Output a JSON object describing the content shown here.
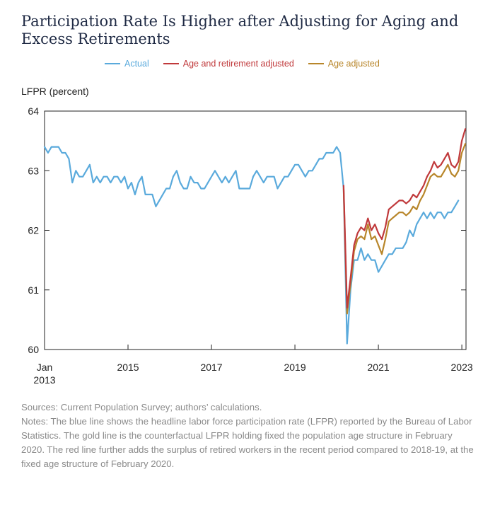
{
  "title": "Participation Rate Is Higher after Adjusting for Aging and Excess Retirements",
  "sources": "Sources: Current Population Survey; authors’ calculations.",
  "notes": "Notes: The blue line shows the headline labor force participation rate (LFPR) reported by the Bureau of Labor Statistics. The gold line is the counterfactual LFPR holding fixed the population age structure in February 2020. The red line further adds the surplus of retired workers in the recent period compared to 2018-19, at the fixed age structure of February 2020.",
  "colors": {
    "actual": "#5aaadc",
    "age_retirement": "#c0393b",
    "age": "#b8862a"
  },
  "chart_data": {
    "type": "line",
    "title": "Participation Rate Is Higher after Adjusting for Aging and Excess Retirements",
    "ylabel": "LFPR (percent)",
    "xlabel": "",
    "ylim": [
      60,
      64
    ],
    "xlim": [
      2013.0,
      2023.1
    ],
    "yticks": [
      60,
      61,
      62,
      63,
      64
    ],
    "xticks": [
      {
        "x": 2013.0,
        "line1": "Jan",
        "line2": "2013"
      },
      {
        "x": 2015.0,
        "line1": "2015",
        "line2": ""
      },
      {
        "x": 2017.0,
        "line1": "2017",
        "line2": ""
      },
      {
        "x": 2019.0,
        "line1": "2019",
        "line2": ""
      },
      {
        "x": 2021.0,
        "line1": "2021",
        "line2": ""
      },
      {
        "x": 2023.0,
        "line1": "2023",
        "line2": ""
      }
    ],
    "grid": false,
    "legend_position": "top-center",
    "series": [
      {
        "name": "Actual",
        "color": "#5aaadc",
        "start": "2013-01",
        "values": [
          63.4,
          63.3,
          63.4,
          63.4,
          63.4,
          63.3,
          63.3,
          63.2,
          62.8,
          63.0,
          62.9,
          62.9,
          63.0,
          63.1,
          62.8,
          62.9,
          62.8,
          62.9,
          62.9,
          62.8,
          62.9,
          62.9,
          62.8,
          62.9,
          62.7,
          62.8,
          62.6,
          62.8,
          62.9,
          62.6,
          62.6,
          62.6,
          62.4,
          62.5,
          62.6,
          62.7,
          62.7,
          62.9,
          63.0,
          62.8,
          62.7,
          62.7,
          62.9,
          62.8,
          62.8,
          62.7,
          62.7,
          62.8,
          62.9,
          63.0,
          62.9,
          62.8,
          62.9,
          62.8,
          62.9,
          63.0,
          62.7,
          62.7,
          62.7,
          62.7,
          62.9,
          63.0,
          62.9,
          62.8,
          62.9,
          62.9,
          62.9,
          62.7,
          62.8,
          62.9,
          62.9,
          63.0,
          63.1,
          63.1,
          63.0,
          62.9,
          63.0,
          63.0,
          63.1,
          63.2,
          63.2,
          63.3,
          63.3,
          63.3,
          63.4,
          63.3,
          62.7,
          60.1,
          61.0,
          61.5,
          61.5,
          61.7,
          61.5,
          61.6,
          61.5,
          61.5,
          61.3,
          61.4,
          61.5,
          61.6,
          61.6,
          61.7,
          61.7,
          61.7,
          61.8,
          62.0,
          61.9,
          62.1,
          62.2,
          62.3,
          62.2,
          62.3,
          62.2,
          62.3,
          62.3,
          62.2,
          62.3,
          62.3,
          62.4,
          62.5
        ]
      },
      {
        "name": "Age and retirement adjusted",
        "color": "#c0393b",
        "start": "2020-03",
        "values": [
          62.75,
          60.7,
          61.2,
          61.75,
          61.95,
          62.05,
          62.0,
          62.2,
          62.0,
          62.1,
          61.95,
          61.85,
          62.05,
          62.35,
          62.4,
          62.45,
          62.5,
          62.5,
          62.45,
          62.5,
          62.6,
          62.55,
          62.65,
          62.75,
          62.9,
          63.0,
          63.15,
          63.05,
          63.1,
          63.2,
          63.3,
          63.1,
          63.05,
          63.15,
          63.5,
          63.7
        ]
      },
      {
        "name": "Age adjusted",
        "color": "#b8862a",
        "start": "2020-03",
        "values": [
          62.7,
          60.6,
          61.1,
          61.65,
          61.85,
          61.9,
          61.85,
          62.1,
          61.85,
          61.9,
          61.75,
          61.6,
          61.85,
          62.15,
          62.2,
          62.25,
          62.3,
          62.3,
          62.25,
          62.3,
          62.4,
          62.35,
          62.5,
          62.6,
          62.75,
          62.9,
          62.95,
          62.9,
          62.9,
          63.0,
          63.1,
          62.95,
          62.9,
          63.0,
          63.3,
          63.45
        ]
      }
    ]
  }
}
